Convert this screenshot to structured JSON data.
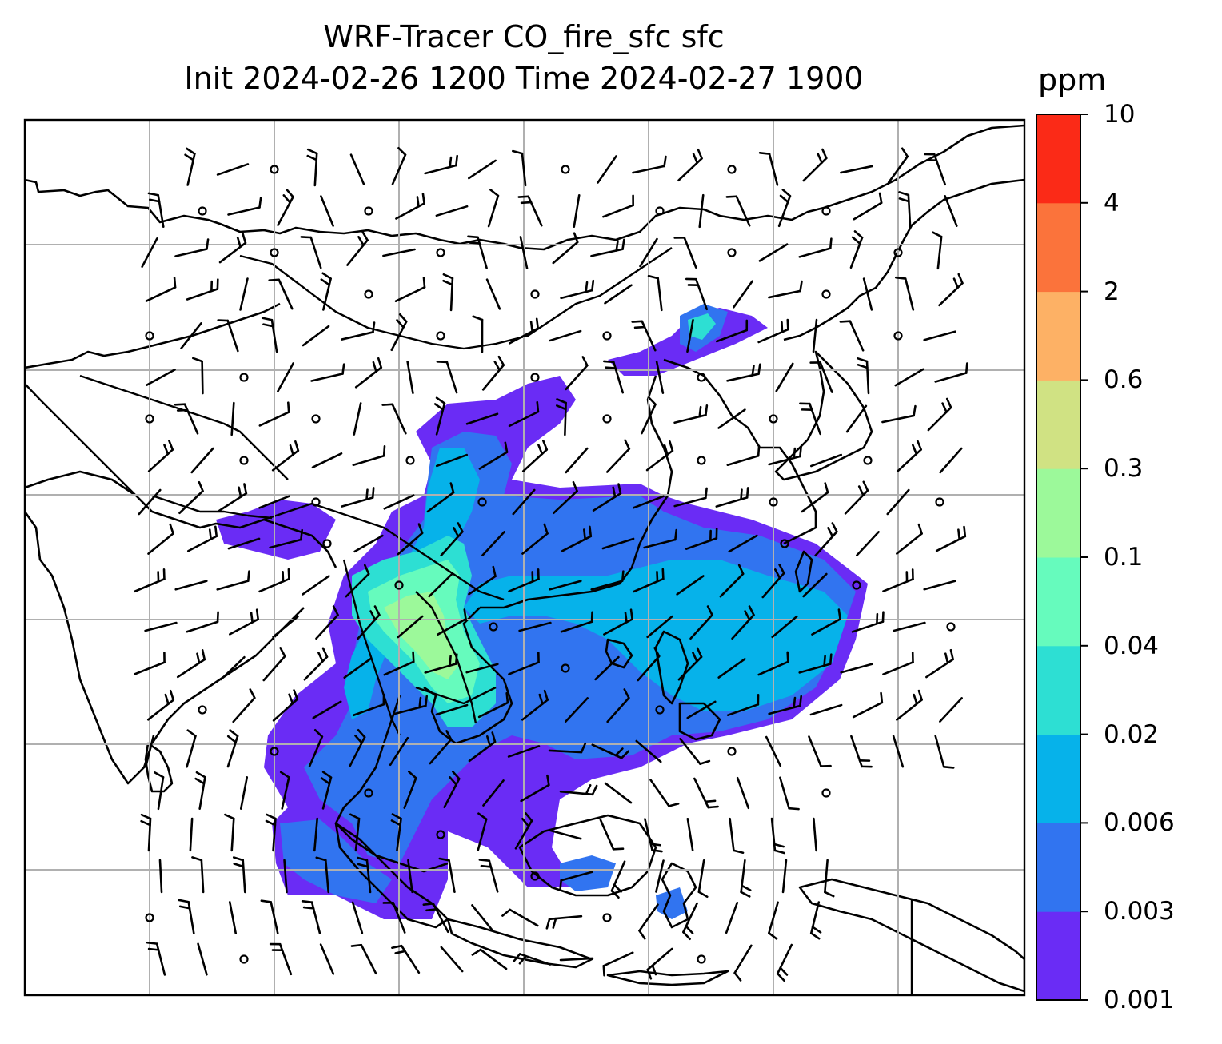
{
  "title": {
    "line1": "WRF-Tracer CO_fire_sfc sfc",
    "line2": "Init 2024-02-26 1200 Time 2024-02-27 1900"
  },
  "colorbar": {
    "unit": "ppm",
    "levels": [
      "0.001",
      "0.003",
      "0.006",
      "0.02",
      "0.04",
      "0.1",
      "0.3",
      "0.6",
      "2",
      "4",
      "10"
    ],
    "colors": [
      "#6a2cf5",
      "#3174f0",
      "#06b2ea",
      "#2ddfd3",
      "#66fbbd",
      "#9cf99a",
      "#d0e283",
      "#fdb165",
      "#fb733b",
      "#fb2a17"
    ]
  },
  "colors": {
    "land_outline": "#000000",
    "gridline": "#b0b0b0",
    "wind_barb": "#000000"
  },
  "map": {
    "field": "CO_fire_sfc",
    "wind_symbols": "barbs-and-calm-circles"
  }
}
